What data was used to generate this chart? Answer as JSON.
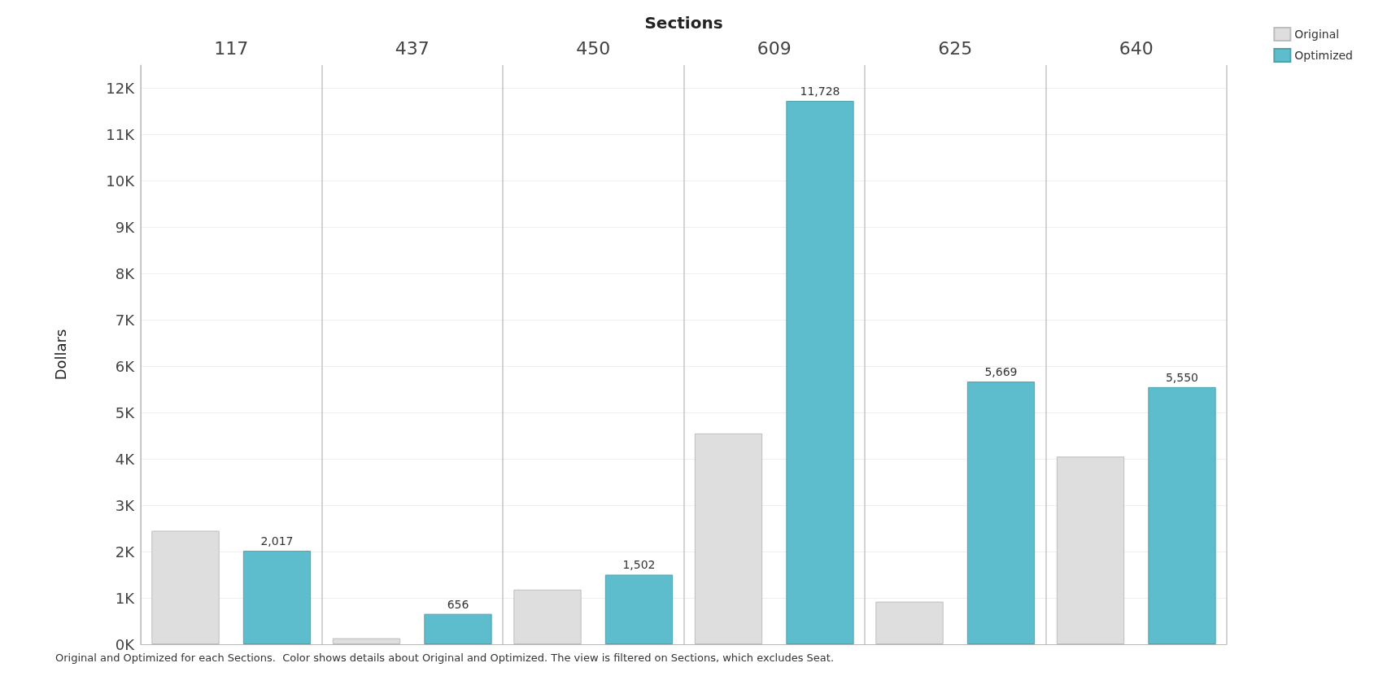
{
  "chart_data": {
    "type": "bar",
    "xlabel": "Sections",
    "ylabel": "Dollars",
    "categories": [
      "117",
      "437",
      "450",
      "609",
      "625",
      "640"
    ],
    "series": [
      {
        "name": "Original",
        "color": "#dedede",
        "values": [
          2450,
          130,
          1180,
          4550,
          920,
          4050
        ]
      },
      {
        "name": "Optimized",
        "color": "#5ebdcd",
        "values": [
          2017,
          656,
          1502,
          11728,
          5669,
          5550
        ],
        "value_labels": [
          "2,017",
          "656",
          "1,502",
          "11,728",
          "5,669",
          "5,550"
        ]
      }
    ],
    "ylim": [
      0,
      12500
    ],
    "yticks": [
      {
        "value": 0,
        "label": "0K"
      },
      {
        "value": 1000,
        "label": "1K"
      },
      {
        "value": 2000,
        "label": "2K"
      },
      {
        "value": 3000,
        "label": "3K"
      },
      {
        "value": 4000,
        "label": "4K"
      },
      {
        "value": 5000,
        "label": "5K"
      },
      {
        "value": 6000,
        "label": "6K"
      },
      {
        "value": 7000,
        "label": "7K"
      },
      {
        "value": 8000,
        "label": "8K"
      },
      {
        "value": 9000,
        "label": "9K"
      },
      {
        "value": 10000,
        "label": "10K"
      },
      {
        "value": 11000,
        "label": "11K"
      },
      {
        "value": 12000,
        "label": "12K"
      }
    ],
    "grid": true,
    "legend": "top right",
    "annotations": [
      "Original and Optimized for each Sections.  Color shows details about Original and Optimized. The view is filtered on Sections, which excludes Seat."
    ]
  }
}
